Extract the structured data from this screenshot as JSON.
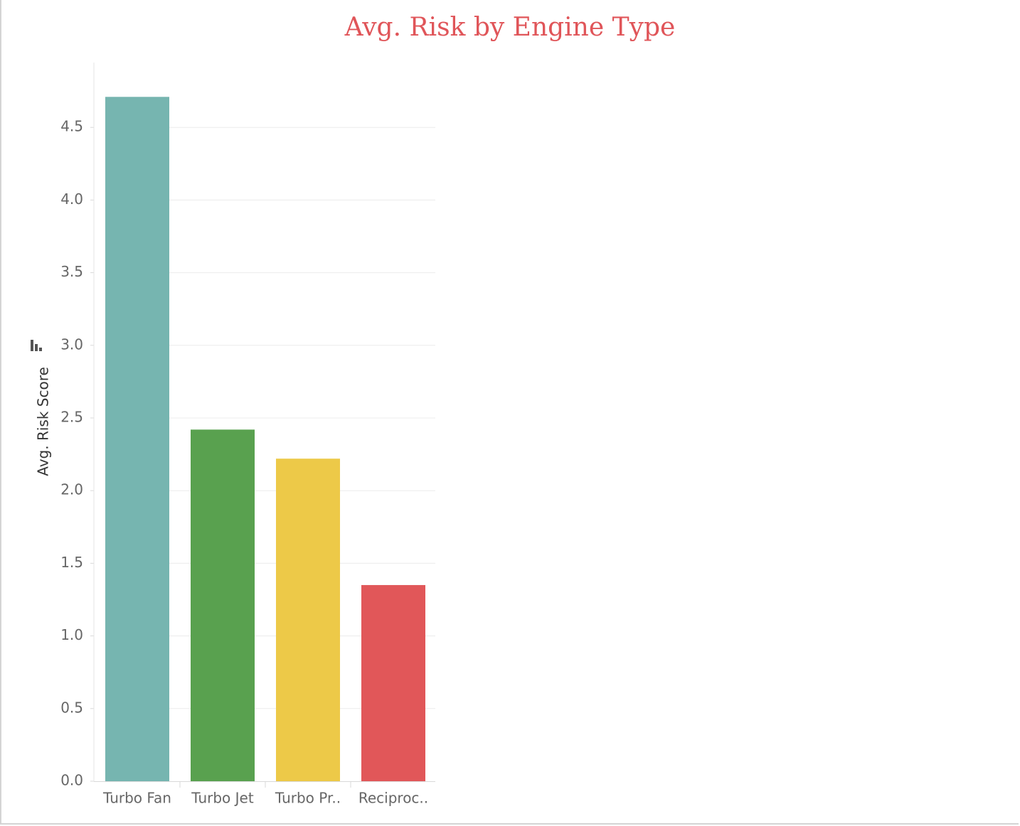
{
  "chart_data": {
    "type": "bar",
    "title": "Avg. Risk by Engine Type",
    "ylabel": "Avg. Risk Score",
    "xlabel": "",
    "categories": [
      "Turbo Fan",
      "Turbo Jet",
      "Turbo Pr..",
      "Reciproc.."
    ],
    "values": [
      4.71,
      2.42,
      2.22,
      1.35
    ],
    "colors": [
      "#76b5b0",
      "#59a14f",
      "#edc948",
      "#e15759"
    ],
    "ylim": [
      0,
      4.75
    ],
    "yticks": [
      "0.0",
      "0.5",
      "1.0",
      "1.5",
      "2.0",
      "2.5",
      "3.0",
      "3.5",
      "4.0",
      "4.5"
    ],
    "grid": true,
    "sort_icon": "sort-descending-icon"
  }
}
